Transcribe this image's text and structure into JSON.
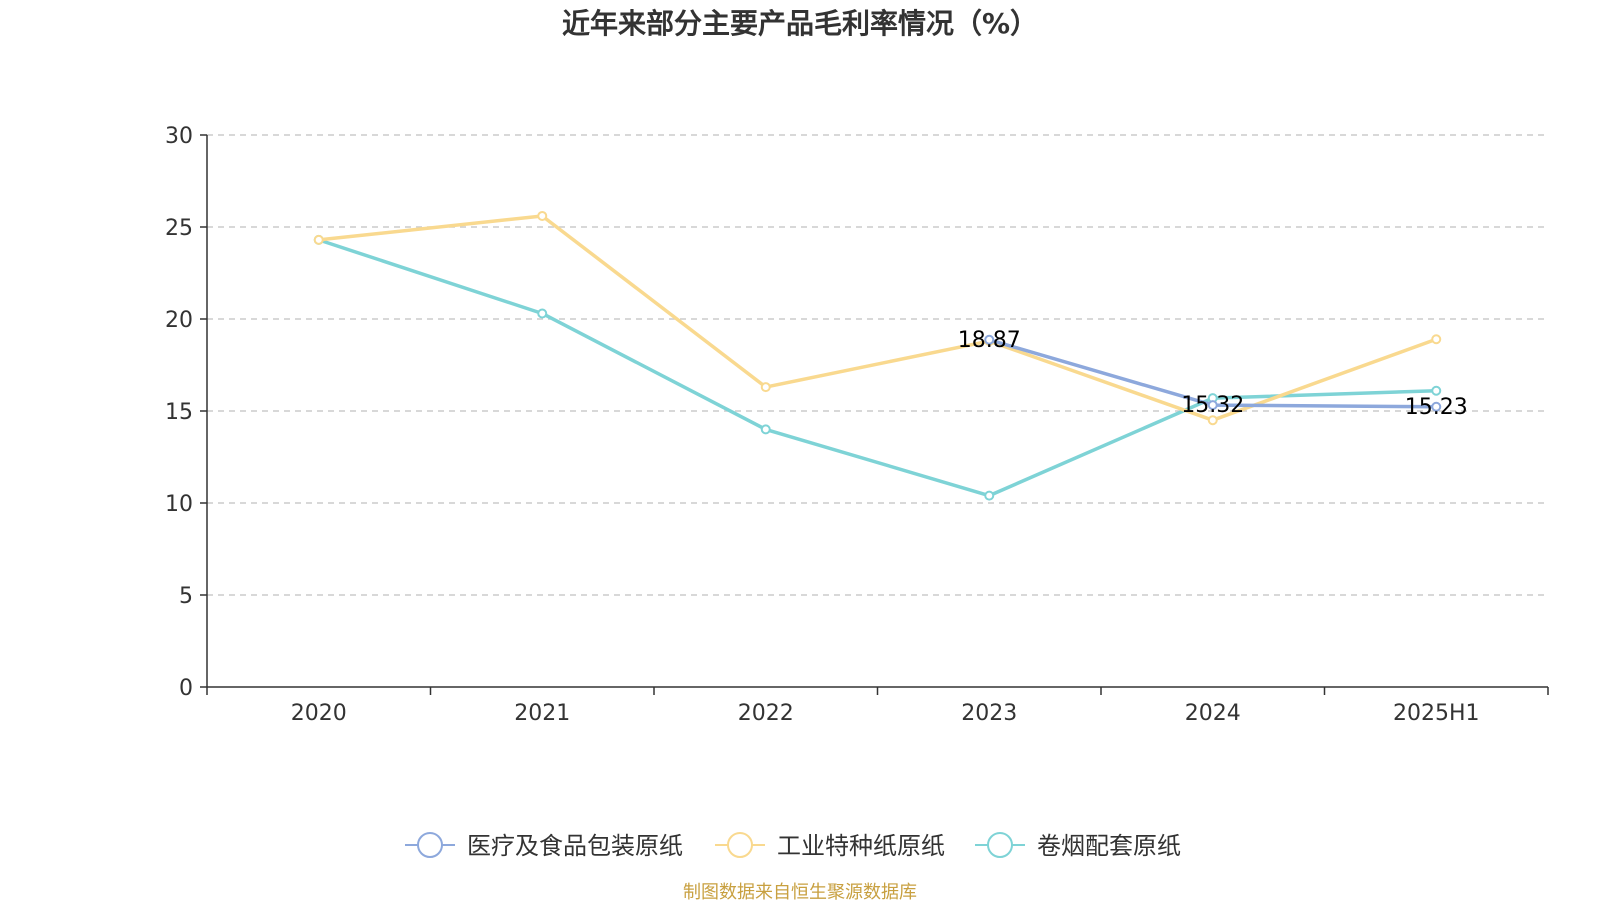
{
  "chart_data": {
    "type": "line",
    "title": "近年来部分主要产品毛利率情况（%）",
    "categories": [
      "2020",
      "2021",
      "2022",
      "2023",
      "2024",
      "2025H1"
    ],
    "series": [
      {
        "name": "医疗及食品包装原纸",
        "color": "#8da8dc",
        "values": [
          null,
          null,
          null,
          18.87,
          15.32,
          15.23
        ]
      },
      {
        "name": "工业特种纸原纸",
        "color": "#f9d98f",
        "values": [
          24.3,
          25.6,
          16.3,
          18.8,
          14.5,
          18.9
        ]
      },
      {
        "name": "卷烟配套原纸",
        "color": "#7ed3d6",
        "values": [
          24.3,
          20.3,
          14.0,
          10.4,
          15.7,
          16.1
        ]
      }
    ],
    "data_labels": [
      {
        "series": 0,
        "index": 3,
        "text": "18.87"
      },
      {
        "series": 0,
        "index": 4,
        "text": "15.32"
      },
      {
        "series": 0,
        "index": 5,
        "text": "15.23"
      }
    ],
    "yticks": [
      "0",
      "5",
      "10",
      "15",
      "20",
      "25",
      "30"
    ],
    "ylim": [
      0,
      30
    ],
    "xlabel": "",
    "ylabel": "",
    "grid": true,
    "legend_position": "bottom"
  },
  "source_note": "制图数据来自恒生聚源数据库",
  "source_note_color": "#c8a040"
}
